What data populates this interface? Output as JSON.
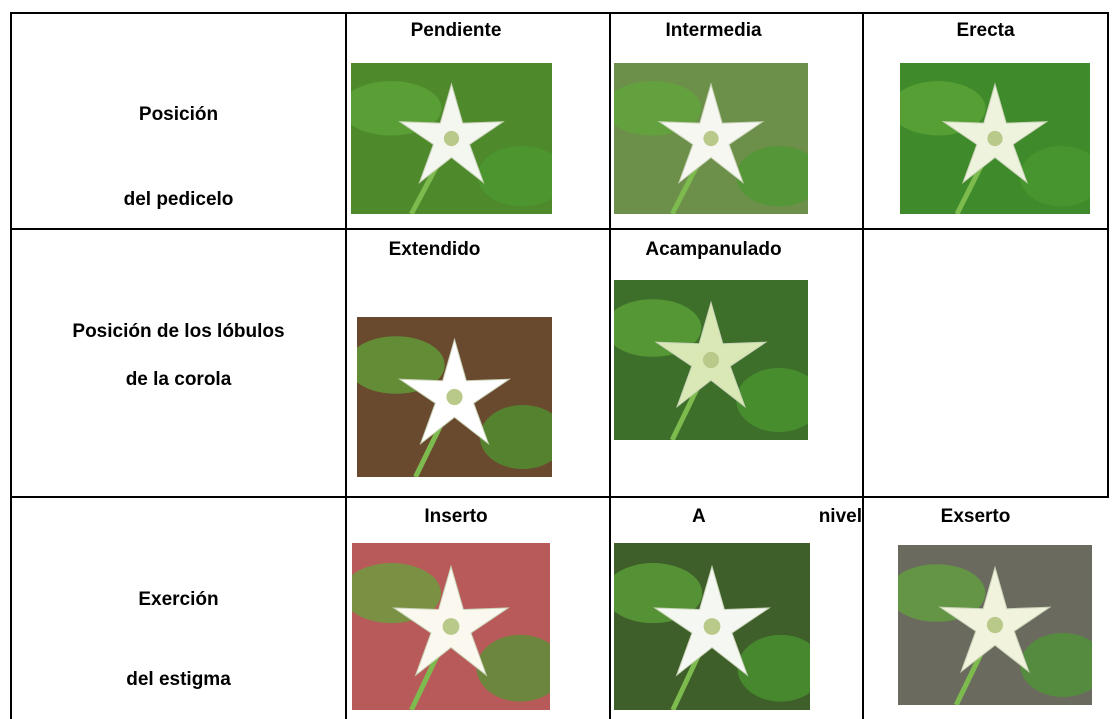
{
  "table": {
    "rows": [
      {
        "label": [
          "Posición",
          "del pedicelo"
        ],
        "cells": [
          "Pendiente",
          "Intermedia",
          "Erecta"
        ]
      },
      {
        "label": [
          "Posición de los lóbulos",
          "de la corola"
        ],
        "cells": [
          "Extendido",
          "Acampanulado"
        ]
      },
      {
        "label": [
          "Exerción",
          "del estigma"
        ],
        "cells": [
          "Inserto",
          "A nivel",
          "Exserto"
        ]
      }
    ]
  }
}
